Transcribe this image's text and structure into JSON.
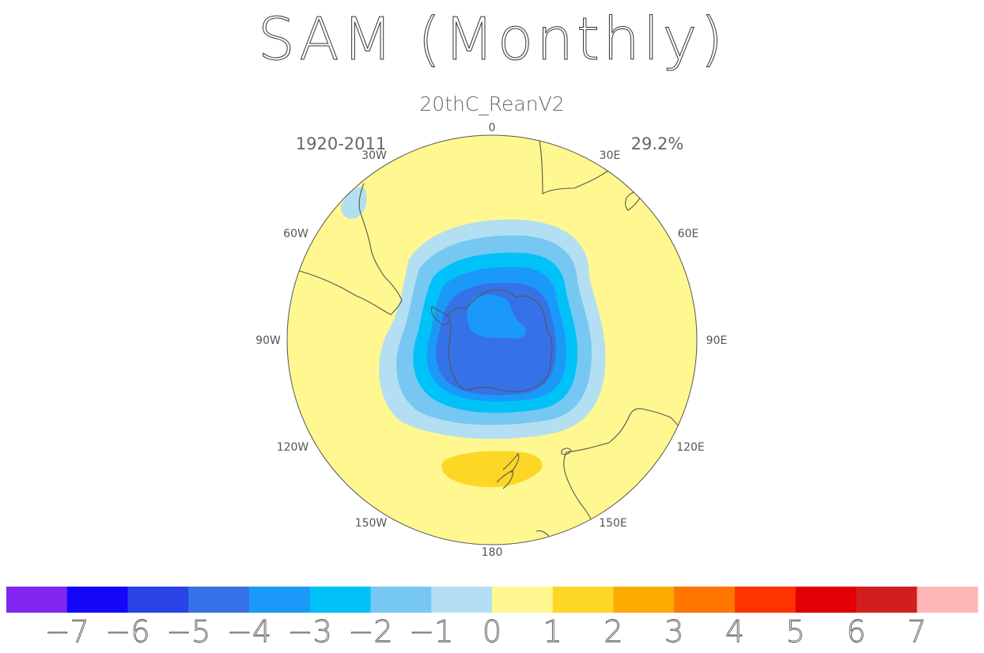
{
  "title": "SAM (Monthly)",
  "subtitle": "20thC_ReanV2",
  "period": "1920-2011",
  "variance_explained": "29.2%",
  "map": {
    "projection": "south polar stereographic",
    "longitude_labels": {
      "lon_0": "0",
      "lon_30e": "30E",
      "lon_60e": "60E",
      "lon_90e": "90E",
      "lon_120e": "120E",
      "lon_150e": "150E",
      "lon_180": "180",
      "lon_150w": "150W",
      "lon_120w": "120W",
      "lon_90w": "90W",
      "lon_60w": "60W",
      "lon_30w": "30W"
    },
    "fill_levels": [
      {
        "level": "-7",
        "color": "#8126f1"
      },
      {
        "level": "-6",
        "color": "#1506f8"
      },
      {
        "level": "-5",
        "color": "#2a43e4"
      },
      {
        "level": "-4",
        "color": "#3672e7"
      },
      {
        "level": "-3",
        "color": "#1b99f9"
      },
      {
        "level": "-2",
        "color": "#00c2f8"
      },
      {
        "level": "-1",
        "color": "#76c8f2"
      },
      {
        "level": "0",
        "color": "#b4dff2"
      },
      {
        "level": "1",
        "color": "#fff890"
      },
      {
        "level": "2",
        "color": "#fdd726"
      },
      {
        "level": "3",
        "color": "#fdaa00"
      },
      {
        "level": "4",
        "color": "#fe7600"
      },
      {
        "level": "5",
        "color": "#fe3300"
      },
      {
        "level": "6",
        "color": "#e20004"
      },
      {
        "level": "7",
        "color": "#d11f1f"
      },
      {
        "level": "",
        "color": "#feb5b6"
      }
    ]
  },
  "colorbar": {
    "tick_labels": [
      "-7",
      "-6",
      "-5",
      "-4",
      "-3",
      "-2",
      "-1",
      "0",
      "1",
      "2",
      "3",
      "4",
      "5",
      "6",
      "7"
    ],
    "colors": [
      "#8126f1",
      "#1506f8",
      "#2a43e4",
      "#3672e7",
      "#1b99f9",
      "#00c2f8",
      "#76c8f2",
      "#b4dff2",
      "#fff890",
      "#fdd726",
      "#fdaa00",
      "#fe7600",
      "#fe3300",
      "#e20004",
      "#d11f1f",
      "#feb5b6"
    ]
  }
}
